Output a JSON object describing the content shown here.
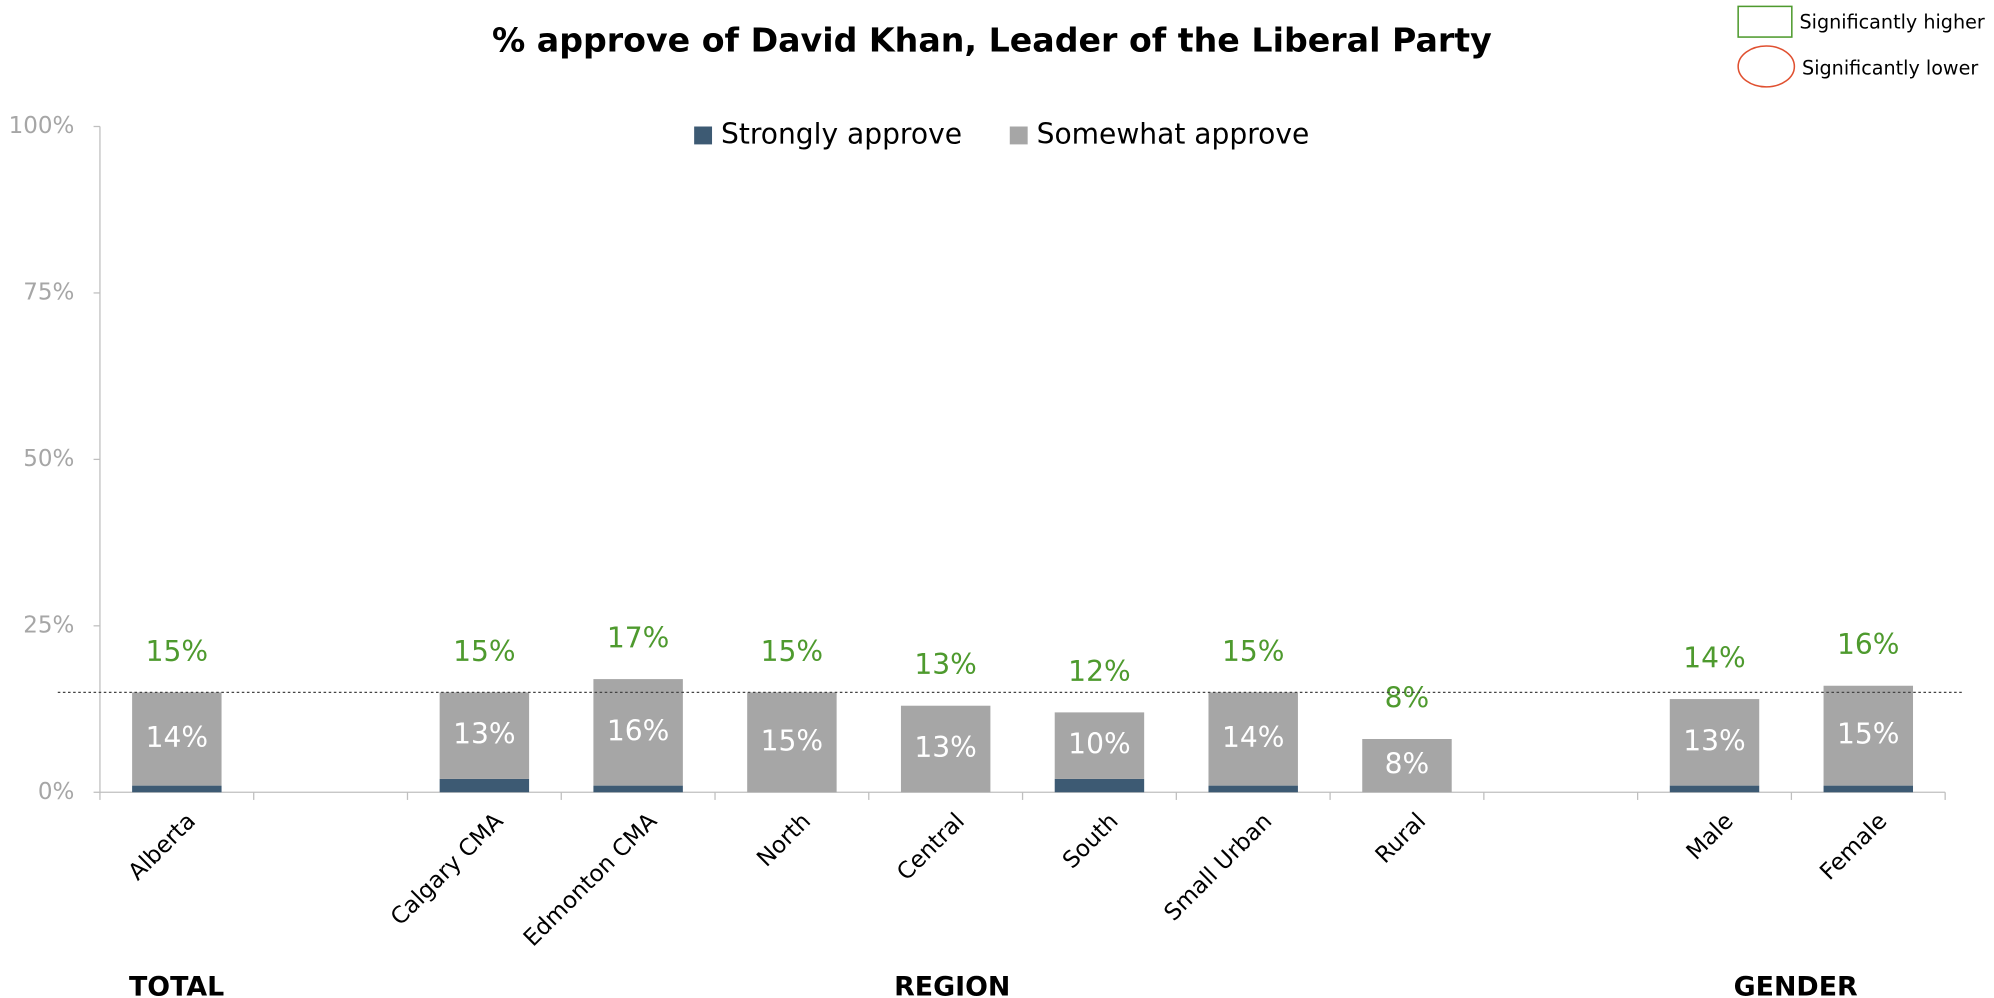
{
  "chart_data": {
    "type": "stacked_bar",
    "title": "% approve of David Khan, Leader of the Liberal Party",
    "categories": [
      "Alberta",
      null,
      "Calgary CMA",
      "Edmonton CMA",
      "North",
      "Central",
      "South",
      "Small Urban",
      "Rural",
      null,
      "Male",
      "Female"
    ],
    "series": [
      {
        "name": "Strongly approve",
        "color": "#3d5a73",
        "values": [
          1,
          null,
          2,
          1,
          0,
          0,
          2,
          1,
          0,
          null,
          1,
          1
        ]
      },
      {
        "name": "Somewhat approve",
        "color": "#a6a6a6",
        "values": [
          14,
          null,
          13,
          16,
          15,
          13,
          10,
          14,
          8,
          null,
          13,
          15
        ],
        "value_labels": [
          "14%",
          null,
          "13%",
          "16%",
          "15%",
          "13%",
          "10%",
          "14%",
          "8%",
          null,
          "13%",
          "15%"
        ]
      }
    ],
    "totals": {
      "color": "#4e9a2e",
      "values": [
        15,
        null,
        15,
        17,
        15,
        13,
        12,
        15,
        8,
        null,
        14,
        16
      ],
      "value_labels": [
        "15%",
        null,
        "15%",
        "17%",
        "15%",
        "13%",
        "12%",
        "15%",
        "8%",
        null,
        "14%",
        "16%"
      ]
    },
    "reference_line": 15,
    "ylim": [
      0,
      100
    ],
    "yticks": [
      {
        "value": 0,
        "label": "0%"
      },
      {
        "value": 25,
        "label": "25%"
      },
      {
        "value": 50,
        "label": "50%"
      },
      {
        "value": 75,
        "label": "75%"
      },
      {
        "value": 100,
        "label": "100%"
      }
    ],
    "groups": [
      "TOTAL",
      "REGION",
      "GENDER"
    ],
    "significance_legend": [
      "Significantly higher",
      "Significantly lower"
    ],
    "legend": "top"
  }
}
